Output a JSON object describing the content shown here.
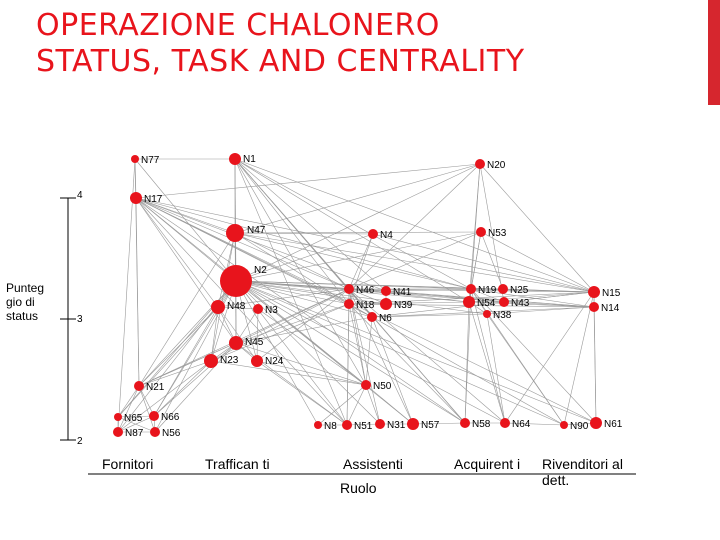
{
  "slide": {
    "title_line1": "OPERAZIONE CHALONERO",
    "title_line2": "STATUS, TASK AND CENTRALITY",
    "accent_color": "#d6262e",
    "title_color": "#e8141c",
    "node_color": "#e8141c"
  },
  "y_axis": {
    "title": "Punteg gio di status",
    "ticks": [
      "4",
      "3",
      "2"
    ]
  },
  "x_axis": {
    "title": "Ruolo",
    "categories": [
      "Fornitori",
      "Traffican ti",
      "Assistenti",
      "Acquirent i",
      "Rivenditori al dett."
    ]
  },
  "network": {
    "nodes": [
      {
        "id": "N77",
        "label": "N77"
      },
      {
        "id": "N1",
        "label": "N1"
      },
      {
        "id": "N20",
        "label": "N20"
      },
      {
        "id": "N17",
        "label": "N17"
      },
      {
        "id": "N47",
        "label": "N47"
      },
      {
        "id": "N4",
        "label": "N4"
      },
      {
        "id": "N53",
        "label": "N53"
      },
      {
        "id": "N2",
        "label": "N2"
      },
      {
        "id": "N46",
        "label": "N46"
      },
      {
        "id": "N41",
        "label": "N41"
      },
      {
        "id": "N18",
        "label": "N18"
      },
      {
        "id": "N39",
        "label": "N39"
      },
      {
        "id": "N6",
        "label": "N6"
      },
      {
        "id": "N19",
        "label": "N19"
      },
      {
        "id": "N25",
        "label": "N25"
      },
      {
        "id": "N54",
        "label": "N54"
      },
      {
        "id": "N43",
        "label": "N43"
      },
      {
        "id": "N38",
        "label": "N38"
      },
      {
        "id": "N15",
        "label": "N15"
      },
      {
        "id": "N14",
        "label": "N14"
      },
      {
        "id": "N48",
        "label": "N48"
      },
      {
        "id": "N3",
        "label": "N3"
      },
      {
        "id": "N45",
        "label": "N45"
      },
      {
        "id": "N23",
        "label": "N23"
      },
      {
        "id": "N24",
        "label": "N24"
      },
      {
        "id": "N21",
        "label": "N21"
      },
      {
        "id": "N50",
        "label": "N50"
      },
      {
        "id": "N65",
        "label": "N65"
      },
      {
        "id": "N66",
        "label": "N66"
      },
      {
        "id": "N87",
        "label": "N87"
      },
      {
        "id": "N56",
        "label": "N56"
      },
      {
        "id": "N8",
        "label": "N8"
      },
      {
        "id": "N51",
        "label": "N51"
      },
      {
        "id": "N31",
        "label": "N31"
      },
      {
        "id": "N57",
        "label": "N57"
      },
      {
        "id": "N58",
        "label": "N58"
      },
      {
        "id": "N64",
        "label": "N64"
      },
      {
        "id": "N90",
        "label": "N90"
      },
      {
        "id": "N61",
        "label": "N61"
      }
    ],
    "edges": [
      [
        "N2",
        "N47"
      ],
      [
        "N2",
        "N1"
      ],
      [
        "N2",
        "N17"
      ],
      [
        "N2",
        "N48"
      ],
      [
        "N2",
        "N3"
      ],
      [
        "N2",
        "N45"
      ],
      [
        "N2",
        "N23"
      ],
      [
        "N2",
        "N24"
      ],
      [
        "N2",
        "N21"
      ],
      [
        "N2",
        "N46"
      ],
      [
        "N2",
        "N41"
      ],
      [
        "N2",
        "N18"
      ],
      [
        "N2",
        "N39"
      ],
      [
        "N2",
        "N6"
      ],
      [
        "N2",
        "N19"
      ],
      [
        "N2",
        "N25"
      ],
      [
        "N2",
        "N54"
      ],
      [
        "N2",
        "N43"
      ],
      [
        "N2",
        "N38"
      ],
      [
        "N2",
        "N15"
      ],
      [
        "N2",
        "N14"
      ],
      [
        "N2",
        "N50"
      ],
      [
        "N2",
        "N4"
      ],
      [
        "N2",
        "N53"
      ],
      [
        "N2",
        "N20"
      ],
      [
        "N2",
        "N65"
      ],
      [
        "N2",
        "N66"
      ],
      [
        "N2",
        "N87"
      ],
      [
        "N2",
        "N56"
      ],
      [
        "N2",
        "N51"
      ],
      [
        "N2",
        "N31"
      ],
      [
        "N2",
        "N8"
      ],
      [
        "N2",
        "N57"
      ],
      [
        "N2",
        "N58"
      ],
      [
        "N2",
        "N64"
      ],
      [
        "N2",
        "N90"
      ],
      [
        "N2",
        "N61"
      ],
      [
        "N2",
        "N77"
      ],
      [
        "N47",
        "N1"
      ],
      [
        "N47",
        "N17"
      ],
      [
        "N47",
        "N48"
      ],
      [
        "N47",
        "N45"
      ],
      [
        "N47",
        "N46"
      ],
      [
        "N47",
        "N18"
      ],
      [
        "N47",
        "N15"
      ],
      [
        "N47",
        "N53"
      ],
      [
        "N47",
        "N4"
      ],
      [
        "N47",
        "N19"
      ],
      [
        "N47",
        "N21"
      ],
      [
        "N47",
        "N23"
      ],
      [
        "N47",
        "N20"
      ],
      [
        "N1",
        "N46"
      ],
      [
        "N1",
        "N41"
      ],
      [
        "N1",
        "N18"
      ],
      [
        "N1",
        "N19"
      ],
      [
        "N1",
        "N54"
      ],
      [
        "N1",
        "N6"
      ],
      [
        "N1",
        "N50"
      ],
      [
        "N1",
        "N51"
      ],
      [
        "N1",
        "N58"
      ],
      [
        "N1",
        "N15"
      ],
      [
        "N1",
        "N45"
      ],
      [
        "N17",
        "N46"
      ],
      [
        "N17",
        "N18"
      ],
      [
        "N17",
        "N6"
      ],
      [
        "N17",
        "N41"
      ],
      [
        "N17",
        "N21"
      ],
      [
        "N17",
        "N45"
      ],
      [
        "N17",
        "N48"
      ],
      [
        "N17",
        "N19"
      ],
      [
        "N17",
        "N15"
      ],
      [
        "N17",
        "N50"
      ],
      [
        "N17",
        "N51"
      ],
      [
        "N17",
        "N58"
      ],
      [
        "N17",
        "N61"
      ],
      [
        "N20",
        "N46"
      ],
      [
        "N20",
        "N19"
      ],
      [
        "N20",
        "N54"
      ],
      [
        "N20",
        "N15"
      ],
      [
        "N20",
        "N17"
      ],
      [
        "N20",
        "N43"
      ],
      [
        "N53",
        "N19"
      ],
      [
        "N53",
        "N25"
      ],
      [
        "N53",
        "N46"
      ],
      [
        "N53",
        "N15"
      ],
      [
        "N53",
        "N54"
      ],
      [
        "N4",
        "N46"
      ],
      [
        "N4",
        "N18"
      ],
      [
        "N4",
        "N15"
      ],
      [
        "N46",
        "N41"
      ],
      [
        "N46",
        "N18"
      ],
      [
        "N46",
        "N39"
      ],
      [
        "N46",
        "N6"
      ],
      [
        "N46",
        "N19"
      ],
      [
        "N46",
        "N54"
      ],
      [
        "N46",
        "N15"
      ],
      [
        "N46",
        "N50"
      ],
      [
        "N46",
        "N51"
      ],
      [
        "N46",
        "N21"
      ],
      [
        "N46",
        "N23"
      ],
      [
        "N46",
        "N24"
      ],
      [
        "N46",
        "N45"
      ],
      [
        "N46",
        "N48"
      ],
      [
        "N46",
        "N58"
      ],
      [
        "N46",
        "N64"
      ],
      [
        "N46",
        "N57"
      ],
      [
        "N46",
        "N31"
      ],
      [
        "N18",
        "N39"
      ],
      [
        "N18",
        "N6"
      ],
      [
        "N18",
        "N54"
      ],
      [
        "N18",
        "N14"
      ],
      [
        "N18",
        "N15"
      ],
      [
        "N18",
        "N45"
      ],
      [
        "N18",
        "N23"
      ],
      [
        "N18",
        "N51"
      ],
      [
        "N18",
        "N50"
      ],
      [
        "N18",
        "N58"
      ],
      [
        "N18",
        "N90"
      ],
      [
        "N41",
        "N25"
      ],
      [
        "N41",
        "N43"
      ],
      [
        "N41",
        "N14"
      ],
      [
        "N41",
        "N39"
      ],
      [
        "N6",
        "N15"
      ],
      [
        "N6",
        "N38"
      ],
      [
        "N6",
        "N14"
      ],
      [
        "N6",
        "N45"
      ],
      [
        "N6",
        "N50"
      ],
      [
        "N6",
        "N57"
      ],
      [
        "N19",
        "N25"
      ],
      [
        "N19",
        "N54"
      ],
      [
        "N19",
        "N43"
      ],
      [
        "N19",
        "N15"
      ],
      [
        "N19",
        "N14"
      ],
      [
        "N19",
        "N58"
      ],
      [
        "N19",
        "N64"
      ],
      [
        "N19",
        "N90"
      ],
      [
        "N19",
        "N61"
      ],
      [
        "N19",
        "N38"
      ],
      [
        "N54",
        "N43"
      ],
      [
        "N54",
        "N15"
      ],
      [
        "N54",
        "N14"
      ],
      [
        "N54",
        "N38"
      ],
      [
        "N54",
        "N58"
      ],
      [
        "N54",
        "N64"
      ],
      [
        "N25",
        "N15"
      ],
      [
        "N43",
        "N15"
      ],
      [
        "N43",
        "N14"
      ],
      [
        "N38",
        "N14"
      ],
      [
        "N38",
        "N64"
      ],
      [
        "N38",
        "N90"
      ],
      [
        "N15",
        "N14"
      ],
      [
        "N15",
        "N90"
      ],
      [
        "N15",
        "N61"
      ],
      [
        "N15",
        "N64"
      ],
      [
        "N14",
        "N61"
      ],
      [
        "N48",
        "N3"
      ],
      [
        "N48",
        "N45"
      ],
      [
        "N48",
        "N23"
      ],
      [
        "N48",
        "N24"
      ],
      [
        "N48",
        "N21"
      ],
      [
        "N48",
        "N65"
      ],
      [
        "N48",
        "N66"
      ],
      [
        "N3",
        "N45"
      ],
      [
        "N3",
        "N24"
      ],
      [
        "N3",
        "N50"
      ],
      [
        "N45",
        "N23"
      ],
      [
        "N45",
        "N24"
      ],
      [
        "N45",
        "N21"
      ],
      [
        "N45",
        "N66"
      ],
      [
        "N45",
        "N56"
      ],
      [
        "N45",
        "N50"
      ],
      [
        "N45",
        "N51"
      ],
      [
        "N23",
        "N21"
      ],
      [
        "N23",
        "N66"
      ],
      [
        "N23",
        "N87"
      ],
      [
        "N23",
        "N50"
      ],
      [
        "N24",
        "N50"
      ],
      [
        "N24",
        "N51"
      ],
      [
        "N21",
        "N65"
      ],
      [
        "N21",
        "N66"
      ],
      [
        "N21",
        "N87"
      ],
      [
        "N21",
        "N56"
      ],
      [
        "N21",
        "N45"
      ],
      [
        "N65",
        "N66"
      ],
      [
        "N65",
        "N87"
      ],
      [
        "N65",
        "N56"
      ],
      [
        "N66",
        "N87"
      ],
      [
        "N66",
        "N56"
      ],
      [
        "N87",
        "N56"
      ],
      [
        "N50",
        "N51"
      ],
      [
        "N50",
        "N8"
      ],
      [
        "N50",
        "N31"
      ],
      [
        "N50",
        "N57"
      ],
      [
        "N51",
        "N31"
      ],
      [
        "N51",
        "N8"
      ],
      [
        "N31",
        "N57"
      ],
      [
        "N57",
        "N58"
      ],
      [
        "N58",
        "N64"
      ],
      [
        "N64",
        "N90"
      ],
      [
        "N90",
        "N61"
      ],
      [
        "N77",
        "N17"
      ],
      [
        "N77",
        "N21"
      ],
      [
        "N77",
        "N87"
      ],
      [
        "N1",
        "N77"
      ]
    ]
  }
}
